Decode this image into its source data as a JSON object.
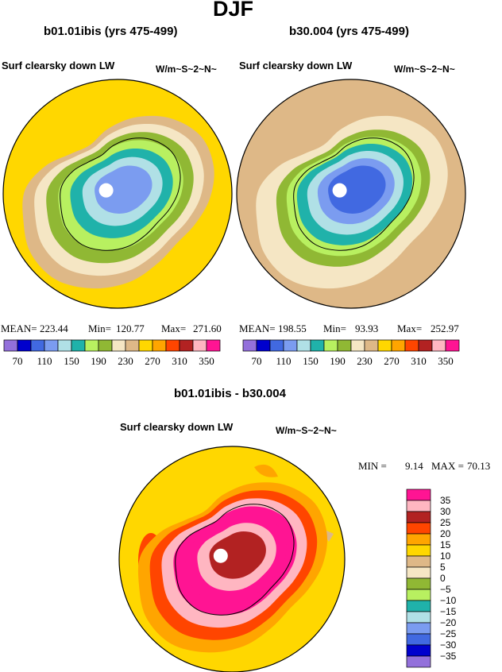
{
  "figure": {
    "season": "DJF",
    "variable": "Surf clearsky down LW",
    "units": "W/m~S~2~N~"
  },
  "panels": [
    {
      "title": "b01.01ibis (yrs 475-499)",
      "stats": {
        "mean_label": "MEAN=",
        "mean": "223.44",
        "min_label": "Min=",
        "min": "120.77",
        "max_label": "Max=",
        "max": "271.60"
      }
    },
    {
      "title": "b30.004 (yrs 475-499)",
      "stats": {
        "mean_label": "MEAN=",
        "mean": "198.55",
        "min_label": "Min=",
        "min": "93.93",
        "max_label": "Max=",
        "max": "252.97"
      }
    },
    {
      "title": "b01.01ibis - b30.004",
      "stats": {
        "min_label": "MIN =",
        "min": "9.14",
        "max_label": "MAX =",
        "max": "70.13"
      }
    }
  ],
  "colorbar_abs": {
    "colors": [
      "#9370DB",
      "#0000CD",
      "#4169E1",
      "#7B9CF0",
      "#B0E0E6",
      "#20B2AA",
      "#B8F060",
      "#90B834",
      "#F5E6C4",
      "#DEB887",
      "#FFD700",
      "#FFA500",
      "#FF4500",
      "#B22222",
      "#FFB6C1",
      "#FF1493"
    ],
    "labels": [
      "70",
      "110",
      "150",
      "190",
      "230",
      "270",
      "310",
      "350"
    ]
  },
  "colorbar_diff": {
    "colors": [
      "#9370DB",
      "#0000CD",
      "#4169E1",
      "#7B9CF0",
      "#B0E0E6",
      "#20B2AA",
      "#B8F060",
      "#90B834",
      "#F5E6C4",
      "#DEB887",
      "#FFD700",
      "#FFA500",
      "#FF4500",
      "#B22222",
      "#FFB6C1",
      "#FF1493"
    ],
    "labels": [
      "35",
      "30",
      "25",
      "20",
      "15",
      "10",
      "5",
      "0",
      "−5",
      "−10",
      "−15",
      "−20",
      "−25",
      "−30",
      "−35"
    ]
  },
  "map_colors": {
    "outer": "#FFD700",
    "mid": "#DEB887",
    "inner": "#F5E6C4",
    "orange": "#FFA500",
    "redorange": "#FF4500",
    "green": "#90B834",
    "lightgreen": "#B8F060",
    "teal": "#20B2AA",
    "paleblue": "#B0E0E6",
    "blue1": "#7B9CF0",
    "blue2": "#4169E1",
    "pink": "#FF1493",
    "lightpink": "#FFB6C1",
    "darkred": "#B22222",
    "pole": "#FFFFFF",
    "coast": "#000000"
  }
}
